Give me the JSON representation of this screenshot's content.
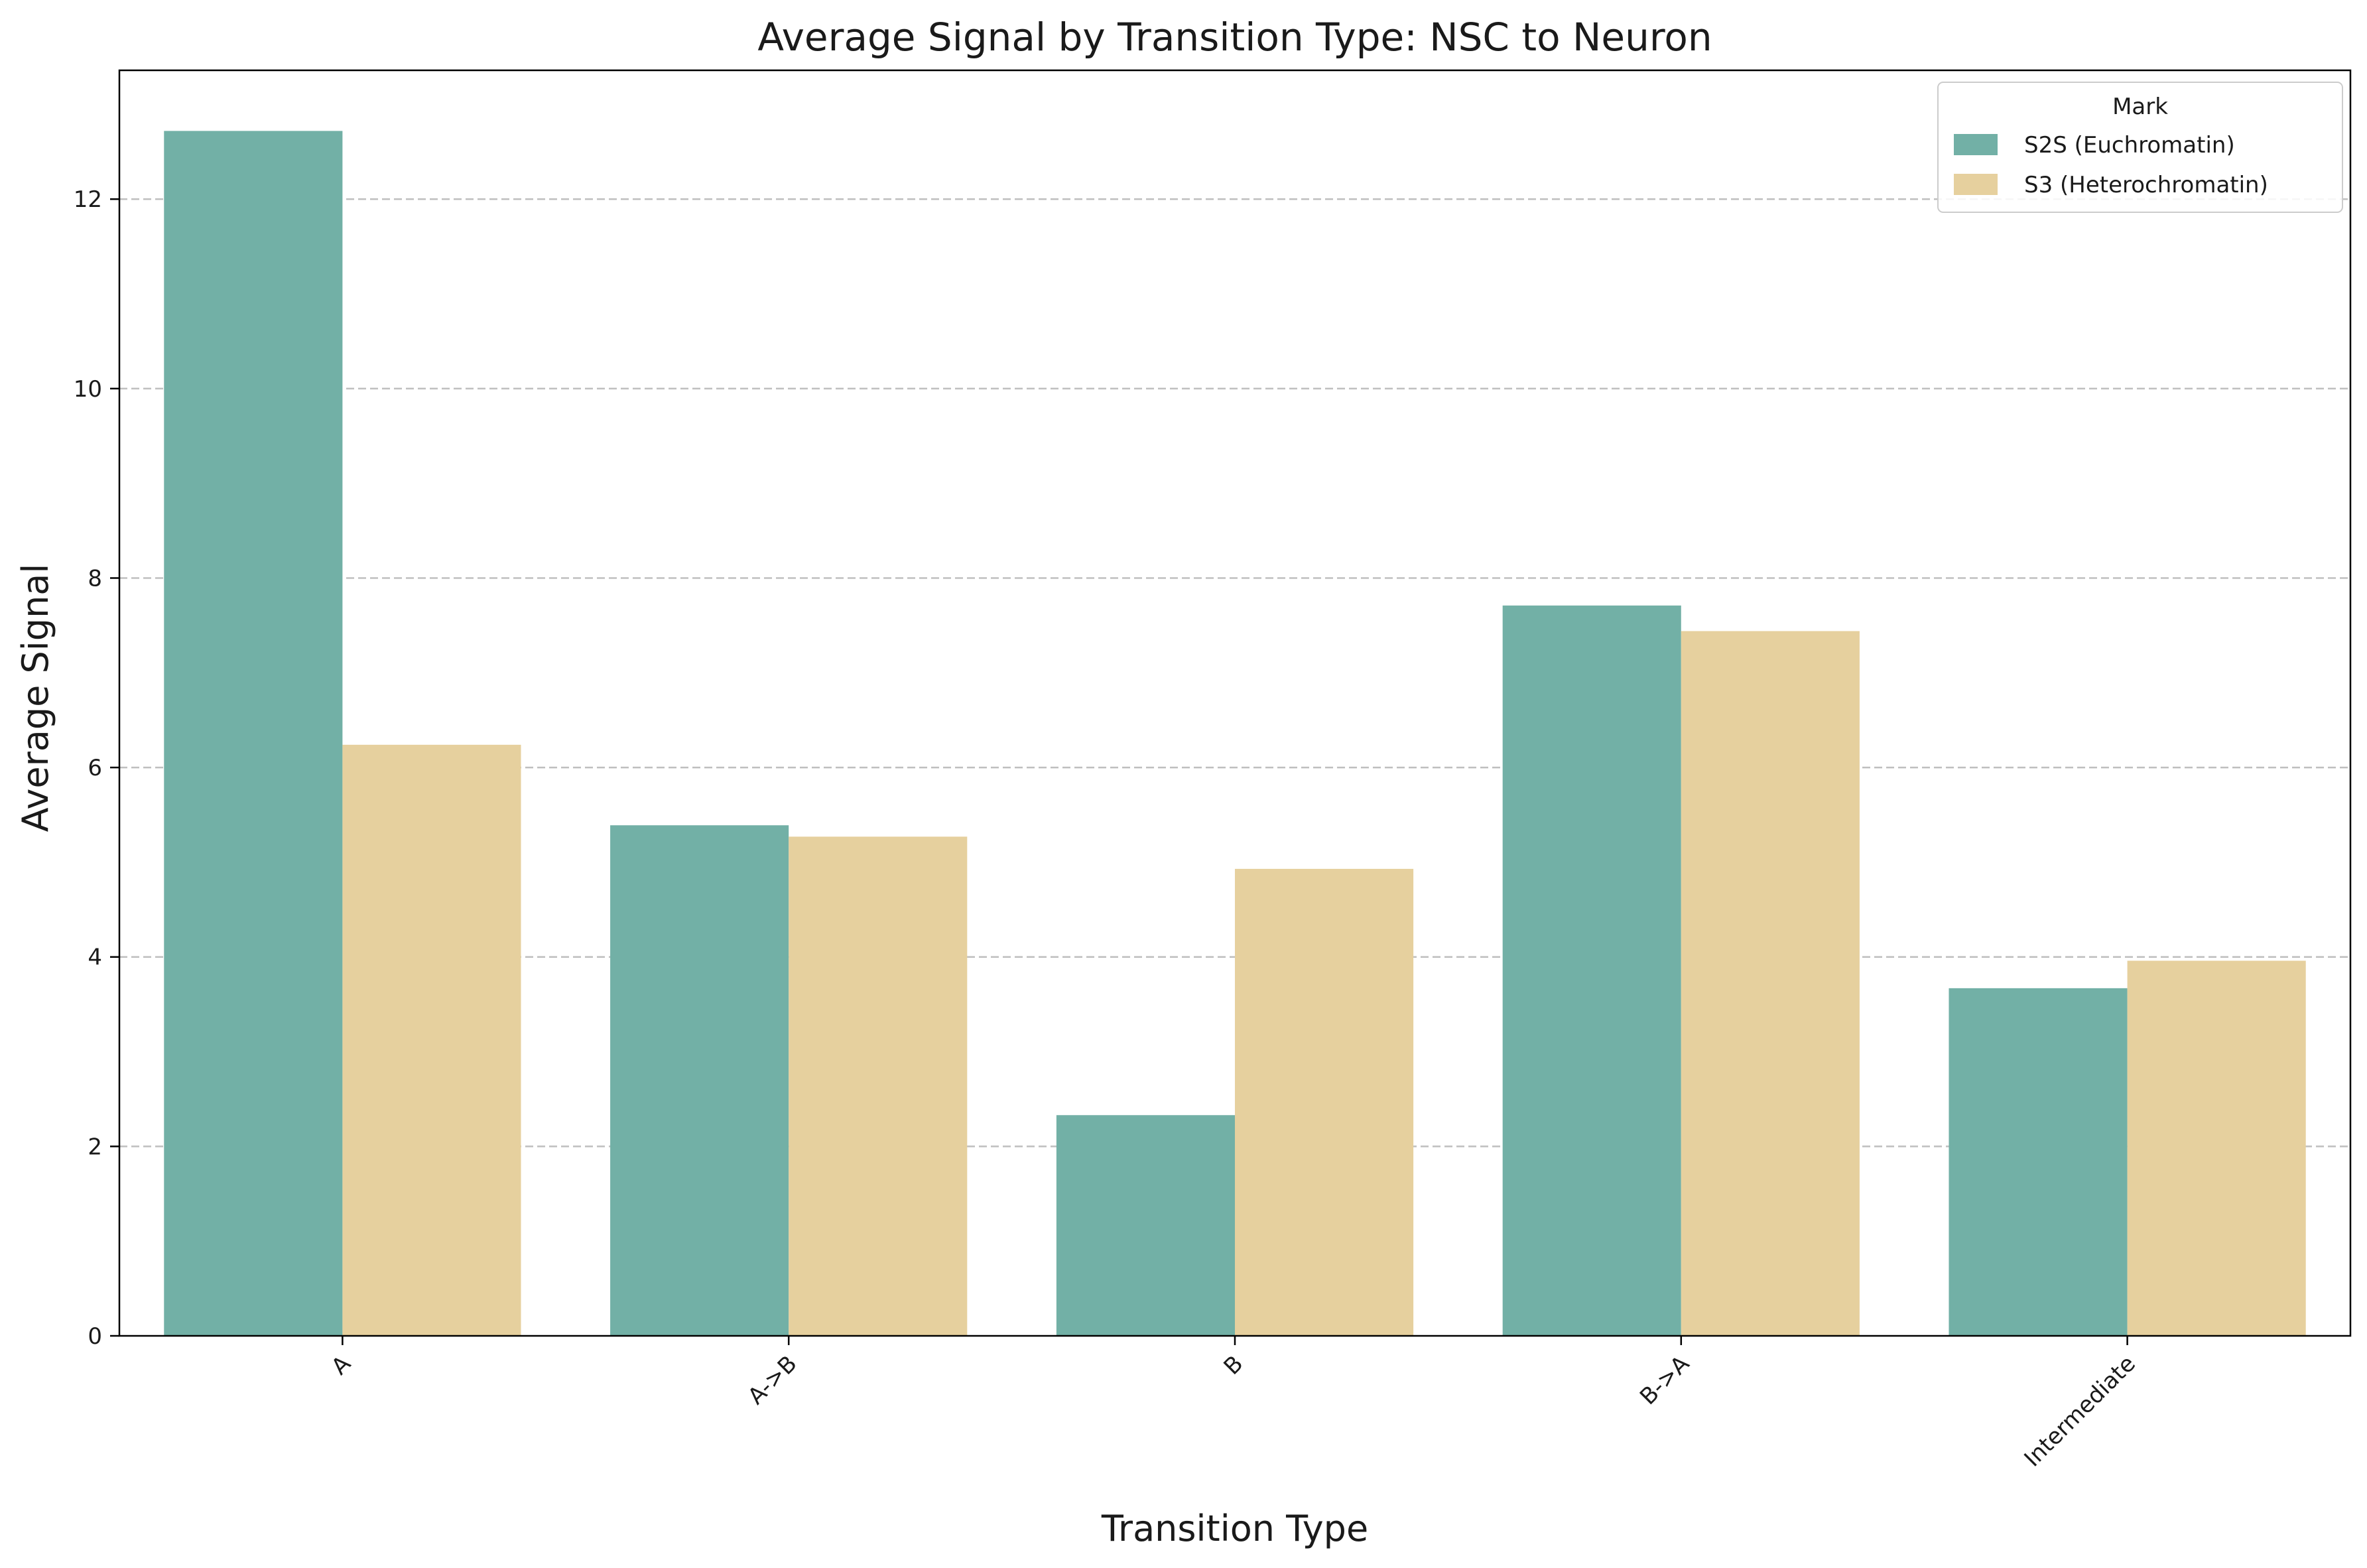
{
  "chart_data": {
    "type": "bar",
    "title": "Average Signal by Transition Type: NSC to Neuron",
    "xlabel": "Transition Type",
    "ylabel": "Average Signal",
    "categories": [
      "A",
      "A->B",
      "B",
      "B->A",
      "Intermediate"
    ],
    "series": [
      {
        "name": "S2S (Euchromatin)",
        "color": "#72b0a6",
        "values": [
          12.72,
          5.39,
          2.33,
          7.71,
          3.67
        ]
      },
      {
        "name": "S3 (Heterochromatin)",
        "color": "#e6d09e",
        "values": [
          6.24,
          5.27,
          4.93,
          7.44,
          3.96
        ]
      }
    ],
    "ylim": [
      0,
      13.36
    ],
    "yticks": [
      "0",
      "2",
      "4",
      "6",
      "8",
      "10",
      "12"
    ],
    "grid": "horizontal dashed",
    "legend": {
      "title": "Mark",
      "placement": "top-right"
    },
    "x_tick_rotation": "45 degrees"
  }
}
